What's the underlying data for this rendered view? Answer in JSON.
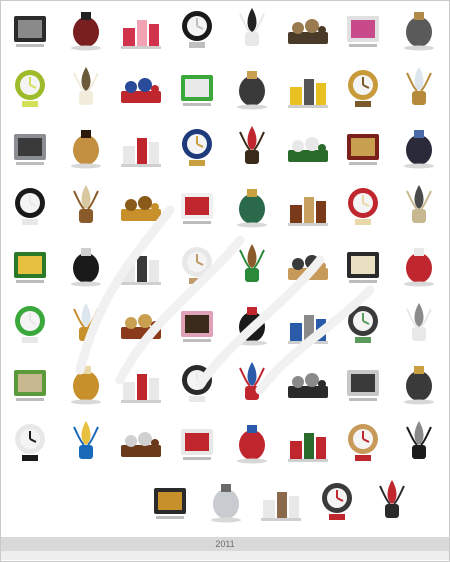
{
  "footer": {
    "year_label": "2011"
  },
  "watermark": {
    "present": true,
    "style": "faint-diagonal-lettering"
  },
  "catalog": {
    "rows": [
      {
        "items": [
          {
            "icon": "framed-pictures-icon",
            "colors": [
              "#2b2b2b",
              "#8a8a8a"
            ]
          },
          {
            "icon": "figurines-icon",
            "colors": [
              "#7a1f1f",
              "#222222"
            ]
          },
          {
            "icon": "red-ornaments-icon",
            "colors": [
              "#d0334b",
              "#f2a3b3"
            ]
          },
          {
            "icon": "black-mask-icon",
            "colors": [
              "#1a1a1a",
              "#bfbfbf"
            ]
          },
          {
            "icon": "white-branch-vase-icon",
            "colors": [
              "#e8e8e8",
              "#222222"
            ]
          },
          {
            "icon": "cat-statues-icon",
            "colors": [
              "#4a3a2a",
              "#9a7b4f"
            ]
          },
          {
            "icon": "flower-bowl-icon",
            "colors": [
              "#e0e0e0",
              "#c94a8a"
            ]
          },
          {
            "icon": "shield-swords-icon",
            "colors": [
              "#5a5a5a",
              "#b08a4a"
            ]
          }
        ]
      },
      {
        "items": [
          {
            "icon": "green-pears-icon",
            "colors": [
              "#9dbb2a",
              "#d4e05a"
            ]
          },
          {
            "icon": "open-book-glasses-icon",
            "colors": [
              "#f2ecdc",
              "#6a5a3a"
            ]
          },
          {
            "icon": "red-blue-vases-icon",
            "colors": [
              "#c0262e",
              "#2a4a9a"
            ]
          },
          {
            "icon": "green-vase-icon",
            "colors": [
              "#3aa83a",
              "#e8e8e8"
            ]
          },
          {
            "icon": "gear-clocks-icon",
            "colors": [
              "#3a3a3a",
              "#c8a050"
            ]
          },
          {
            "icon": "yellow-flowers-icon",
            "colors": [
              "#e8c020",
              "#555555"
            ]
          },
          {
            "icon": "golden-clock-icon",
            "colors": [
              "#c89a3a",
              "#7a5a2a"
            ]
          },
          {
            "icon": "oval-mirror-icon",
            "colors": [
              "#b58a3a",
              "#dde6ee"
            ]
          }
        ]
      },
      {
        "items": [
          {
            "icon": "steel-box-icon",
            "colors": [
              "#8a8e92",
              "#3a3a3a"
            ]
          },
          {
            "icon": "standing-mirror-icon",
            "colors": [
              "#c29040",
              "#2a1a0a"
            ]
          },
          {
            "icon": "playing-card-jars-icon",
            "colors": [
              "#e8e8e8",
              "#c0262e"
            ]
          },
          {
            "icon": "blue-egg-jars-icon",
            "colors": [
              "#1e3a7a",
              "#c8a040"
            ]
          },
          {
            "icon": "photo-frames-icon",
            "colors": [
              "#3a2a1a",
              "#c0262e"
            ]
          },
          {
            "icon": "green-tray-icon",
            "colors": [
              "#2a6a2a",
              "#e8e8e8"
            ]
          },
          {
            "icon": "mantel-clock-icon",
            "colors": [
              "#7a1f1a",
              "#c8a050"
            ]
          },
          {
            "icon": "camera-icon",
            "colors": [
              "#2a2a3a",
              "#4a6aaa"
            ]
          }
        ]
      },
      {
        "items": [
          {
            "icon": "chess-pieces-icon",
            "colors": [
              "#1a1a1a",
              "#e8e8e8"
            ]
          },
          {
            "icon": "wooden-figures-icon",
            "colors": [
              "#8a5a2a",
              "#d8c8a0"
            ]
          },
          {
            "icon": "candelabra-icon",
            "colors": [
              "#c8902a",
              "#8a5a1a"
            ]
          },
          {
            "icon": "white-cups-icon",
            "colors": [
              "#f0f0f0",
              "#c0262e"
            ]
          },
          {
            "icon": "green-box-icon",
            "colors": [
              "#2a6a4a",
              "#c8a040"
            ]
          },
          {
            "icon": "antique-clock-icon",
            "colors": [
              "#7a3a1a",
              "#c8a060"
            ]
          },
          {
            "icon": "wrapped-gift-icon",
            "colors": [
              "#c0262e",
              "#e8d8a8"
            ]
          },
          {
            "icon": "cat-frame-icon",
            "colors": [
              "#c8b890",
              "#4a4a4a"
            ]
          }
        ]
      },
      {
        "items": [
          {
            "icon": "tea-set-icon",
            "colors": [
              "#2a7a2a",
              "#e8c040"
            ]
          },
          {
            "icon": "swan-sculpture-icon",
            "colors": [
              "#1a1a1a",
              "#d0d0d0"
            ]
          },
          {
            "icon": "brush-cup-icon",
            "colors": [
              "#e8e8e8",
              "#3a3a3a"
            ]
          },
          {
            "icon": "ribbon-bowl-icon",
            "colors": [
              "#e8e8e8",
              "#c09a6a"
            ]
          },
          {
            "icon": "bonsai-tree-icon",
            "colors": [
              "#2a8a3a",
              "#8a5a2a"
            ]
          },
          {
            "icon": "wooden-tray-icon",
            "colors": [
              "#c89a5a",
              "#3a3a3a"
            ]
          },
          {
            "icon": "candle-set-icon",
            "colors": [
              "#2a2a2a",
              "#e8e0c0"
            ]
          },
          {
            "icon": "red-bottles-icon",
            "colors": [
              "#c0262e",
              "#e8e8e8"
            ]
          }
        ]
      },
      {
        "items": [
          {
            "icon": "cocktail-set-icon",
            "colors": [
              "#3aa83a",
              "#e8e8e8"
            ]
          },
          {
            "icon": "sunburst-mirror-icon",
            "colors": [
              "#c8902a",
              "#dde6ee"
            ]
          },
          {
            "icon": "cuckoo-clock-icon",
            "colors": [
              "#8a3a1a",
              "#c8a050"
            ]
          },
          {
            "icon": "floral-frame-icon",
            "colors": [
              "#e0a0b8",
              "#3a2a1a"
            ]
          },
          {
            "icon": "console-table-icon",
            "colors": [
              "#1a1a1a",
              "#c0262e"
            ]
          },
          {
            "icon": "globe-icon",
            "colors": [
              "#2a5aaa",
              "#8a8a8a"
            ]
          },
          {
            "icon": "vintage-tv-icon",
            "colors": [
              "#3a3a3a",
              "#5a9a5a"
            ]
          },
          {
            "icon": "birdcage-icon",
            "colors": [
              "#e8e8e8",
              "#8a8a8a"
            ]
          }
        ]
      },
      {
        "items": [
          {
            "icon": "plant-frames-icon",
            "colors": [
              "#5a9a3a",
              "#c8b890"
            ]
          },
          {
            "icon": "lamp-icon",
            "colors": [
              "#c8902a",
              "#e8d8a8"
            ]
          },
          {
            "icon": "white-flowers-icon",
            "colors": [
              "#e8e8e8",
              "#c0262e"
            ]
          },
          {
            "icon": "desk-clock-icon",
            "colors": [
              "#2a2a2a",
              "#e8e8e8"
            ]
          },
          {
            "icon": "small-sign-icon",
            "colors": [
              "#c0262e",
              "#2a5aaa"
            ]
          },
          {
            "icon": "laptop-icon",
            "colors": [
              "#2a2a2a",
              "#8a8a8a"
            ]
          },
          {
            "icon": "picture-frame-icon",
            "colors": [
              "#c8c8c8",
              "#3a3a3a"
            ]
          },
          {
            "icon": "trophy-icon",
            "colors": [
              "#3a3a3a",
              "#c8a040"
            ]
          }
        ]
      },
      {
        "items": [
          {
            "icon": "ballet-figures-icon",
            "colors": [
              "#e8e8e8",
              "#1a1a1a"
            ]
          },
          {
            "icon": "blue-wave-sculpture-icon",
            "colors": [
              "#1a6aba",
              "#e8c040"
            ]
          },
          {
            "icon": "wooden-chair-icon",
            "colors": [
              "#6a3a1a",
              "#d0d0d0"
            ]
          },
          {
            "icon": "plate-set-icon",
            "colors": [
              "#e8e8e8",
              "#c0262e"
            ]
          },
          {
            "icon": "cups-icon",
            "colors": [
              "#c0262e",
              "#2a5aaa"
            ]
          },
          {
            "icon": "red-flowers-icon",
            "colors": [
              "#c0262e",
              "#2a6a2a"
            ]
          },
          {
            "icon": "wicker-basket-icon",
            "colors": [
              "#c89a5a",
              "#c0262e"
            ]
          },
          {
            "icon": "wall-hooks-icon",
            "colors": [
              "#1a1a1a",
              "#8a8a8a"
            ]
          }
        ]
      },
      {
        "items": [
          {
            "icon": "spotted-egg-icon",
            "colors": [
              "#2a2a2a",
              "#c8902a"
            ]
          },
          {
            "icon": "silver-canister-icon",
            "colors": [
              "#c8ccd0",
              "#6a6a6a"
            ]
          },
          {
            "icon": "blossom-branch-icon",
            "colors": [
              "#e8e8e8",
              "#8a6a4a"
            ]
          },
          {
            "icon": "photo-stand-icon",
            "colors": [
              "#3a3a3a",
              "#c0262e"
            ]
          },
          {
            "icon": "hourglass-icon",
            "colors": [
              "#2a2a2a",
              "#c0262e"
            ]
          }
        ]
      }
    ]
  }
}
